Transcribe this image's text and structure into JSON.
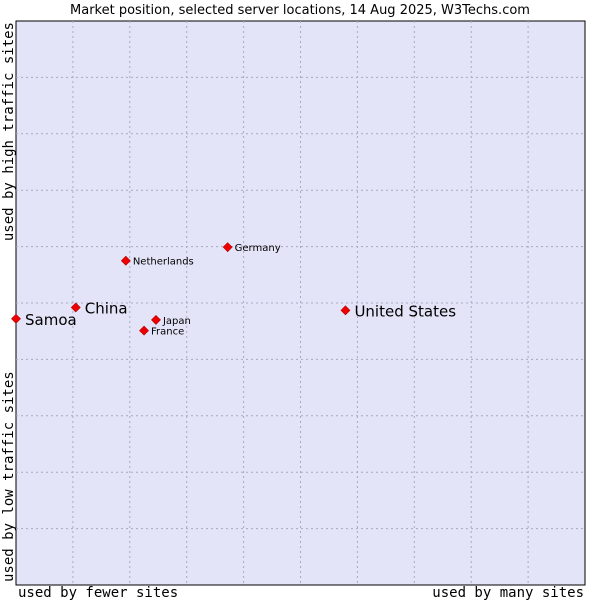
{
  "chart_data": {
    "type": "scatter",
    "title": "Market position, selected server locations, 14 Aug 2025, W3Techs.com",
    "xlabel_left": "used by fewer sites",
    "xlabel_right": "used by many sites",
    "ylabel_top": "used by high traffic sites",
    "ylabel_bottom": "used by low traffic sites",
    "xlim": [
      0,
      10
    ],
    "ylim": [
      0,
      10
    ],
    "grid": true,
    "points": [
      {
        "label": "Samoa",
        "x": 0.0,
        "y": 4.72,
        "emphasis": "large"
      },
      {
        "label": "China",
        "x": 1.05,
        "y": 4.92,
        "emphasis": "large"
      },
      {
        "label": "Netherlands",
        "x": 1.93,
        "y": 5.75,
        "emphasis": "small"
      },
      {
        "label": "Germany",
        "x": 3.72,
        "y": 5.99,
        "emphasis": "small"
      },
      {
        "label": "Japan",
        "x": 2.46,
        "y": 4.7,
        "emphasis": "small"
      },
      {
        "label": "France",
        "x": 2.25,
        "y": 4.51,
        "emphasis": "small"
      },
      {
        "label": "United States",
        "x": 5.79,
        "y": 4.87,
        "emphasis": "large"
      }
    ]
  },
  "colors": {
    "plot_background": "#e4e4f8",
    "grid": "#a8a8c0",
    "marker": "#ee0000",
    "text": "#000000"
  }
}
